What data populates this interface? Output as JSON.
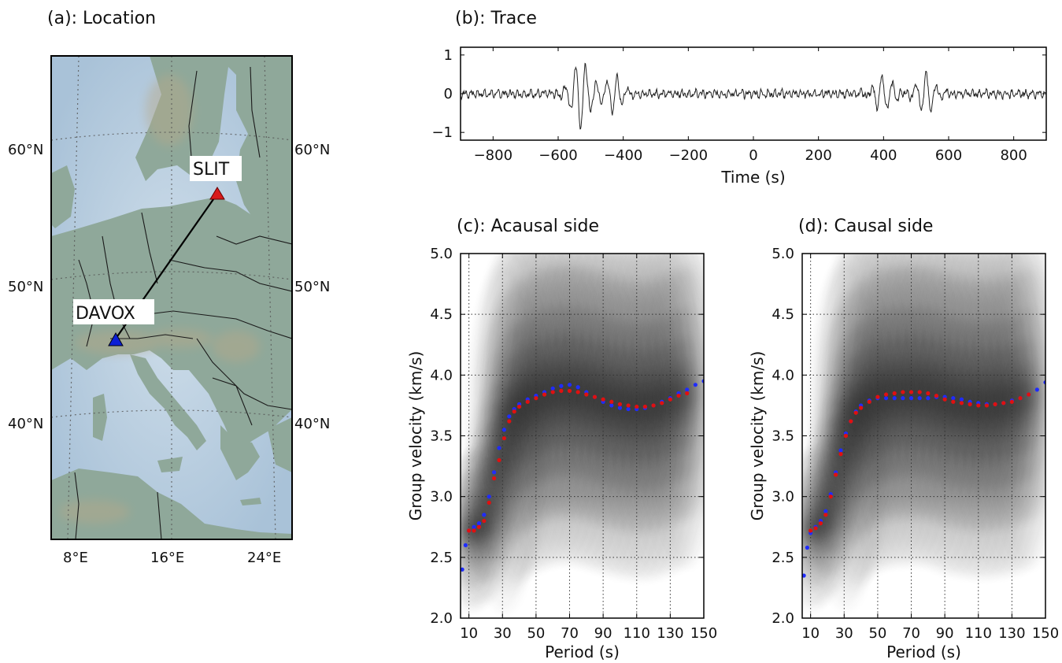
{
  "colors": {
    "blue_points": "#1f2cff",
    "red_points": "#e01010",
    "trace_line": "#222222",
    "station_davox": "#0b1fd6",
    "station_slit": "#d81a1a"
  },
  "icons": [
    "station-triangle-icon"
  ],
  "chart_data": [
    {
      "id": "a",
      "type": "map",
      "title": "(a): Location",
      "lon_ticks": [
        "8°E",
        "16°E",
        "24°E"
      ],
      "lat_ticks": [
        "60°N",
        "50°N",
        "40°N"
      ],
      "stations": [
        {
          "name": "SLIT",
          "lat": 57.4,
          "lon": 18.4
        },
        {
          "name": "DAVOX",
          "lat": 46.8,
          "lon": 9.9
        }
      ]
    },
    {
      "id": "b",
      "type": "line",
      "title": "(b): Trace",
      "xlabel": "Time (s)",
      "ylabel": "",
      "xlim": [
        -900,
        900
      ],
      "ylim": [
        -1.2,
        1.2
      ],
      "xticks": [
        -800,
        -600,
        -400,
        -200,
        0,
        200,
        400,
        600,
        800
      ],
      "xtick_labels": [
        "−800",
        "−600",
        "−400",
        "−200",
        "0",
        "200",
        "400",
        "600",
        "800"
      ],
      "yticks": [
        1,
        0,
        -1
      ],
      "ytick_labels": [
        "1",
        "0",
        "−1"
      ],
      "wave_packets": [
        {
          "center": -530,
          "amplitude": 0.85
        },
        {
          "center": -430,
          "amplitude": 0.45
        },
        {
          "center": 400,
          "amplitude": 0.45
        },
        {
          "center": 530,
          "amplitude": 0.5
        }
      ]
    },
    {
      "id": "c",
      "type": "scatter",
      "title": "(c): Acausal side",
      "xlabel": "Period (s)",
      "ylabel": "Group velocity (km/s)",
      "xlim": [
        5,
        150
      ],
      "ylim": [
        2.0,
        5.0
      ],
      "grid": true,
      "xticks": [
        10,
        30,
        50,
        70,
        90,
        110,
        130,
        150
      ],
      "yticks": [
        2.0,
        2.5,
        3.0,
        3.5,
        4.0,
        4.5,
        5.0
      ],
      "ytick_labels": [
        "2.0",
        "2.5",
        "3.0",
        "3.5",
        "4.0",
        "4.5",
        "5.0"
      ],
      "series": [
        {
          "color": "blue",
          "x": [
            6,
            8,
            10,
            13,
            16,
            19,
            22,
            25,
            28,
            31,
            34,
            37,
            40,
            45,
            50,
            55,
            60,
            65,
            70,
            75,
            80,
            85,
            90,
            95,
            100,
            105,
            110,
            115,
            120,
            125,
            130,
            135,
            140,
            145,
            150
          ],
          "y": [
            2.4,
            2.6,
            2.72,
            2.75,
            2.78,
            2.85,
            3.0,
            3.2,
            3.4,
            3.55,
            3.66,
            3.72,
            3.76,
            3.8,
            3.83,
            3.86,
            3.89,
            3.91,
            3.92,
            3.9,
            3.86,
            3.82,
            3.78,
            3.75,
            3.73,
            3.72,
            3.72,
            3.73,
            3.75,
            3.78,
            3.81,
            3.85,
            3.88,
            3.92,
            3.95
          ]
        },
        {
          "color": "red",
          "x": [
            10,
            13,
            16,
            19,
            22,
            25,
            28,
            31,
            34,
            37,
            40,
            45,
            50,
            55,
            60,
            65,
            70,
            75,
            80,
            85,
            90,
            95,
            100,
            105,
            110,
            115,
            120,
            125,
            130,
            135,
            140
          ],
          "y": [
            2.72,
            2.72,
            2.75,
            2.8,
            2.95,
            3.15,
            3.3,
            3.48,
            3.62,
            3.7,
            3.74,
            3.78,
            3.81,
            3.84,
            3.86,
            3.87,
            3.87,
            3.86,
            3.84,
            3.82,
            3.8,
            3.78,
            3.76,
            3.75,
            3.74,
            3.74,
            3.75,
            3.77,
            3.8,
            3.83,
            3.85
          ]
        }
      ]
    },
    {
      "id": "d",
      "type": "scatter",
      "title": "(d): Causal side",
      "xlabel": "Period (s)",
      "ylabel": "Group velocity (km/s)",
      "xlim": [
        5,
        150
      ],
      "ylim": [
        2.0,
        5.0
      ],
      "grid": true,
      "xticks": [
        10,
        30,
        50,
        70,
        90,
        110,
        130,
        150
      ],
      "yticks": [
        2.0,
        2.5,
        3.0,
        3.5,
        4.0,
        4.5,
        5.0
      ],
      "ytick_labels": [
        "2.0",
        "2.5",
        "3.0",
        "3.5",
        "4.0",
        "4.5",
        "5.0"
      ],
      "series": [
        {
          "color": "blue",
          "x": [
            6,
            8,
            10,
            13,
            16,
            19,
            22,
            25,
            28,
            31,
            34,
            37,
            40,
            45,
            50,
            55,
            60,
            65,
            70,
            75,
            80,
            85,
            90,
            95,
            100,
            105,
            110,
            115,
            120,
            125,
            130,
            135,
            140,
            145,
            150
          ],
          "y": [
            2.35,
            2.58,
            2.7,
            2.75,
            2.8,
            2.88,
            3.02,
            3.2,
            3.38,
            3.52,
            3.62,
            3.7,
            3.75,
            3.79,
            3.81,
            3.81,
            3.81,
            3.81,
            3.81,
            3.81,
            3.81,
            3.82,
            3.82,
            3.81,
            3.8,
            3.78,
            3.77,
            3.76,
            3.76,
            3.77,
            3.79,
            3.81,
            3.84,
            3.88,
            3.94
          ]
        },
        {
          "color": "red",
          "x": [
            10,
            13,
            16,
            19,
            22,
            25,
            28,
            31,
            34,
            37,
            40,
            45,
            50,
            55,
            60,
            65,
            70,
            75,
            80,
            85,
            90,
            95,
            100,
            105,
            110,
            115,
            120,
            125,
            130,
            135,
            140
          ],
          "y": [
            2.72,
            2.74,
            2.78,
            2.85,
            3.0,
            3.18,
            3.35,
            3.5,
            3.62,
            3.69,
            3.73,
            3.78,
            3.82,
            3.84,
            3.85,
            3.86,
            3.86,
            3.86,
            3.85,
            3.83,
            3.8,
            3.78,
            3.77,
            3.76,
            3.75,
            3.75,
            3.76,
            3.77,
            3.78,
            3.81,
            3.84
          ]
        }
      ]
    }
  ]
}
